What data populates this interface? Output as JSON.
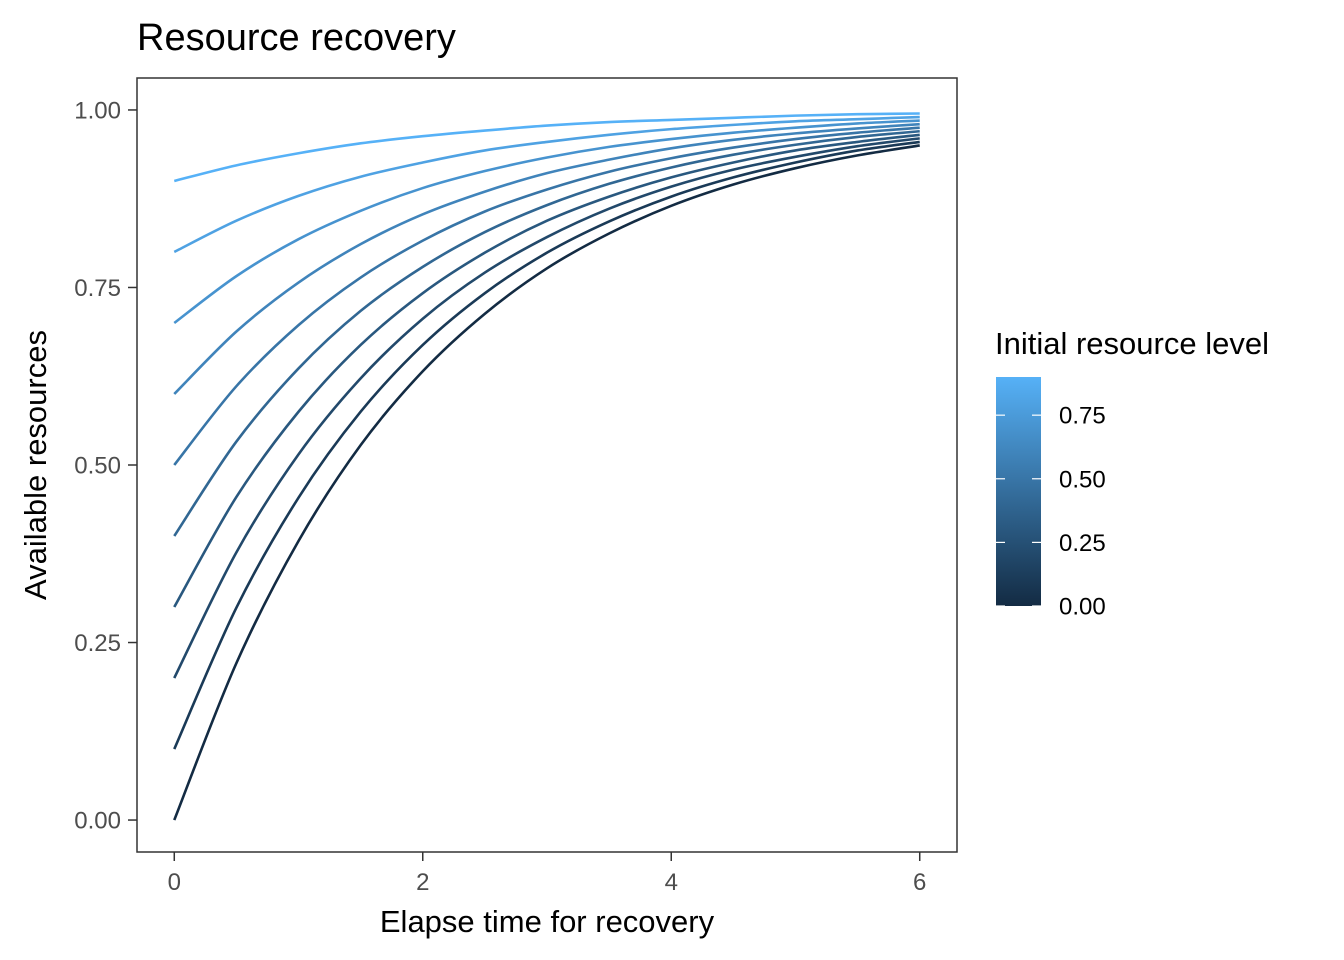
{
  "chart_data": {
    "type": "line",
    "title": "Resource recovery",
    "xlabel": "Elapse time for recovery",
    "ylabel": "Available resources",
    "xlim": [
      -0.3,
      6.3
    ],
    "ylim": [
      -0.045,
      1.045
    ],
    "x_ticks": [
      0,
      2,
      4,
      6
    ],
    "x_tick_labels": [
      "0",
      "2",
      "4",
      "6"
    ],
    "y_ticks": [
      0,
      0.25,
      0.5,
      0.75,
      1.0
    ],
    "y_tick_labels": [
      "0.00",
      "0.25",
      "0.50",
      "0.75",
      "1.00"
    ],
    "grid": false,
    "model": "y = 1 - (1 - initial) * exp(-0.5 * t)",
    "x": [
      0,
      0.5,
      1,
      1.5,
      2,
      2.5,
      3,
      3.5,
      4,
      4.5,
      5,
      5.5,
      6
    ],
    "series": [
      {
        "initial": 0.0,
        "values": [
          0.0,
          0.221,
          0.393,
          0.528,
          0.632,
          0.713,
          0.777,
          0.826,
          0.865,
          0.895,
          0.918,
          0.936,
          0.95
        ]
      },
      {
        "initial": 0.1,
        "values": [
          0.1,
          0.299,
          0.454,
          0.575,
          0.669,
          0.742,
          0.799,
          0.843,
          0.878,
          0.905,
          0.926,
          0.943,
          0.955
        ]
      },
      {
        "initial": 0.2,
        "values": [
          0.2,
          0.377,
          0.515,
          0.622,
          0.706,
          0.771,
          0.821,
          0.861,
          0.892,
          0.916,
          0.934,
          0.949,
          0.96
        ]
      },
      {
        "initial": 0.3,
        "values": [
          0.3,
          0.455,
          0.575,
          0.669,
          0.742,
          0.799,
          0.844,
          0.878,
          0.905,
          0.926,
          0.943,
          0.955,
          0.965
        ]
      },
      {
        "initial": 0.4,
        "values": [
          0.4,
          0.533,
          0.636,
          0.717,
          0.779,
          0.828,
          0.866,
          0.896,
          0.919,
          0.937,
          0.951,
          0.962,
          0.97
        ]
      },
      {
        "initial": 0.5,
        "values": [
          0.5,
          0.611,
          0.697,
          0.764,
          0.816,
          0.857,
          0.888,
          0.913,
          0.932,
          0.947,
          0.959,
          0.968,
          0.975
        ]
      },
      {
        "initial": 0.6,
        "values": [
          0.6,
          0.688,
          0.757,
          0.811,
          0.853,
          0.885,
          0.911,
          0.93,
          0.946,
          0.958,
          0.967,
          0.974,
          0.98
        ]
      },
      {
        "initial": 0.7,
        "values": [
          0.7,
          0.766,
          0.818,
          0.858,
          0.89,
          0.914,
          0.933,
          0.948,
          0.959,
          0.968,
          0.975,
          0.981,
          0.985
        ]
      },
      {
        "initial": 0.8,
        "values": [
          0.8,
          0.844,
          0.879,
          0.906,
          0.926,
          0.943,
          0.955,
          0.965,
          0.973,
          0.979,
          0.984,
          0.987,
          0.99
        ]
      },
      {
        "initial": 0.9,
        "values": [
          0.9,
          0.922,
          0.939,
          0.953,
          0.963,
          0.971,
          0.978,
          0.983,
          0.986,
          0.989,
          0.992,
          0.994,
          0.995
        ]
      }
    ],
    "legend": {
      "title": "Initial resource level",
      "type": "colorbar",
      "placement": "right",
      "range": [
        0,
        0.9
      ],
      "ticks": [
        0,
        0.25,
        0.5,
        0.75
      ],
      "tick_labels": [
        "0.00",
        "0.25",
        "0.50",
        "0.75"
      ],
      "color_low": "#132B43",
      "color_high": "#56B1F7"
    }
  },
  "colors": {
    "panel_border": "#333333",
    "tick": "#333333",
    "tick_label": "#4d4d4d",
    "background": "#ffffff"
  }
}
